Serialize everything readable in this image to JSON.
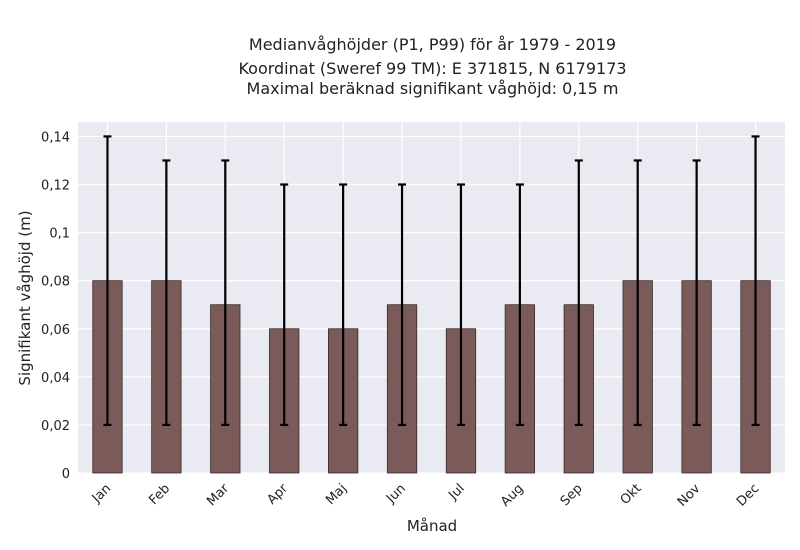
{
  "chart_data": {
    "type": "bar",
    "title_lines": [
      "Medianvåghöjder (P1, P99) för år 1979 - 2019",
      "Koordinat (Sweref 99 TM): E 371815, N 6179173",
      "Maximal beräknad signifikant våghöjd: 0,15 m"
    ],
    "xlabel": "Månad",
    "ylabel": "Signifikant våghöjd (m)",
    "categories": [
      "Jan",
      "Feb",
      "Mar",
      "Apr",
      "Maj",
      "Jun",
      "Jul",
      "Aug",
      "Sep",
      "Okt",
      "Nov",
      "Dec"
    ],
    "values": [
      0.08,
      0.08,
      0.07,
      0.06,
      0.06,
      0.07,
      0.06,
      0.07,
      0.07,
      0.08,
      0.08,
      0.08
    ],
    "p1": [
      0.02,
      0.02,
      0.02,
      0.02,
      0.02,
      0.02,
      0.02,
      0.02,
      0.02,
      0.02,
      0.02,
      0.02
    ],
    "p99": [
      0.14,
      0.13,
      0.13,
      0.12,
      0.12,
      0.12,
      0.12,
      0.12,
      0.13,
      0.13,
      0.13,
      0.14
    ],
    "ylim": [
      0,
      0.146
    ],
    "yticks": [
      0,
      0.02,
      0.04,
      0.06,
      0.08,
      0.1,
      0.12,
      0.14
    ],
    "ytick_labels": [
      "0",
      "0,02",
      "0,04",
      "0,06",
      "0,08",
      "0,1",
      "0,12",
      "0,14"
    ],
    "grid": true,
    "colors": {
      "bar": "#7b5a5a",
      "bar_edge": "#3a2a2a",
      "background": "#eaeaf2",
      "grid": "#ffffff",
      "errorbar": "#000000",
      "text": "#222222"
    }
  }
}
